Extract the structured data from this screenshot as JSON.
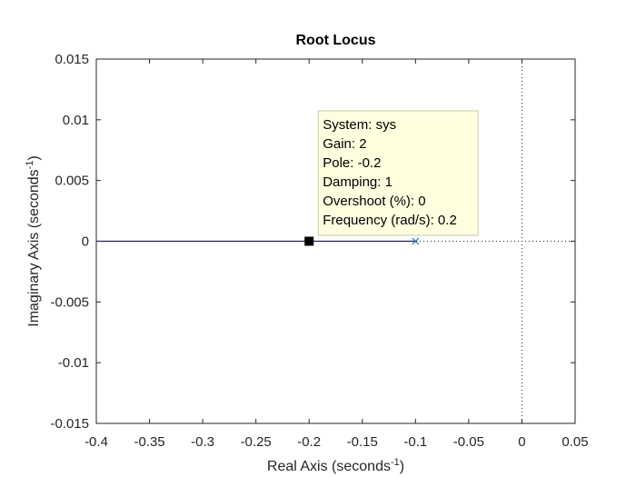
{
  "chart_data": {
    "type": "line",
    "title": "Root Locus",
    "xlabel": {
      "text": "Real Axis (seconds",
      "sup": "-1",
      "close": ")"
    },
    "ylabel": {
      "text": "Imaginary Axis (seconds",
      "sup": "-1",
      "close": ")"
    },
    "xlim": [
      -0.4,
      0.05
    ],
    "ylim": [
      -0.015,
      0.015
    ],
    "xticks": [
      {
        "v": -0.4,
        "label": "-0.4"
      },
      {
        "v": -0.35,
        "label": "-0.35"
      },
      {
        "v": -0.3,
        "label": "-0.3"
      },
      {
        "v": -0.25,
        "label": "-0.25"
      },
      {
        "v": -0.2,
        "label": "-0.2"
      },
      {
        "v": -0.15,
        "label": "-0.15"
      },
      {
        "v": -0.1,
        "label": "-0.1"
      },
      {
        "v": -0.05,
        "label": "-0.05"
      },
      {
        "v": 0,
        "label": "0"
      },
      {
        "v": 0.05,
        "label": "0.05"
      }
    ],
    "yticks": [
      {
        "v": -0.015,
        "label": "-0.015"
      },
      {
        "v": -0.01,
        "label": "-0.01"
      },
      {
        "v": -0.005,
        "label": "-0.005"
      },
      {
        "v": 0,
        "label": "0"
      },
      {
        "v": 0.005,
        "label": "0.005"
      },
      {
        "v": 0.01,
        "label": "0.01"
      },
      {
        "v": 0.015,
        "label": "0.015"
      }
    ],
    "grid": false,
    "locus": {
      "x": [
        -0.4,
        -0.1
      ],
      "y": [
        0,
        0
      ],
      "color": "#2a1b5e"
    },
    "open_loop_pole": {
      "x": -0.1,
      "y": 0,
      "marker": "x",
      "color": "#1f77b4"
    },
    "selected_point": {
      "x": -0.2,
      "y": 0,
      "marker": "square",
      "color": "#000000"
    },
    "reference_lines": {
      "x": 0,
      "y": 0,
      "style": "dotted",
      "color": "#262626"
    },
    "datatip": {
      "lines": [
        "System: sys",
        "Gain: 2",
        "Pole: -0.2",
        "Damping: 1",
        "Overshoot (%): 0",
        "Frequency (rad/s): 0.2"
      ],
      "background": "#ffffe0",
      "border": "#c8c8a0"
    }
  }
}
